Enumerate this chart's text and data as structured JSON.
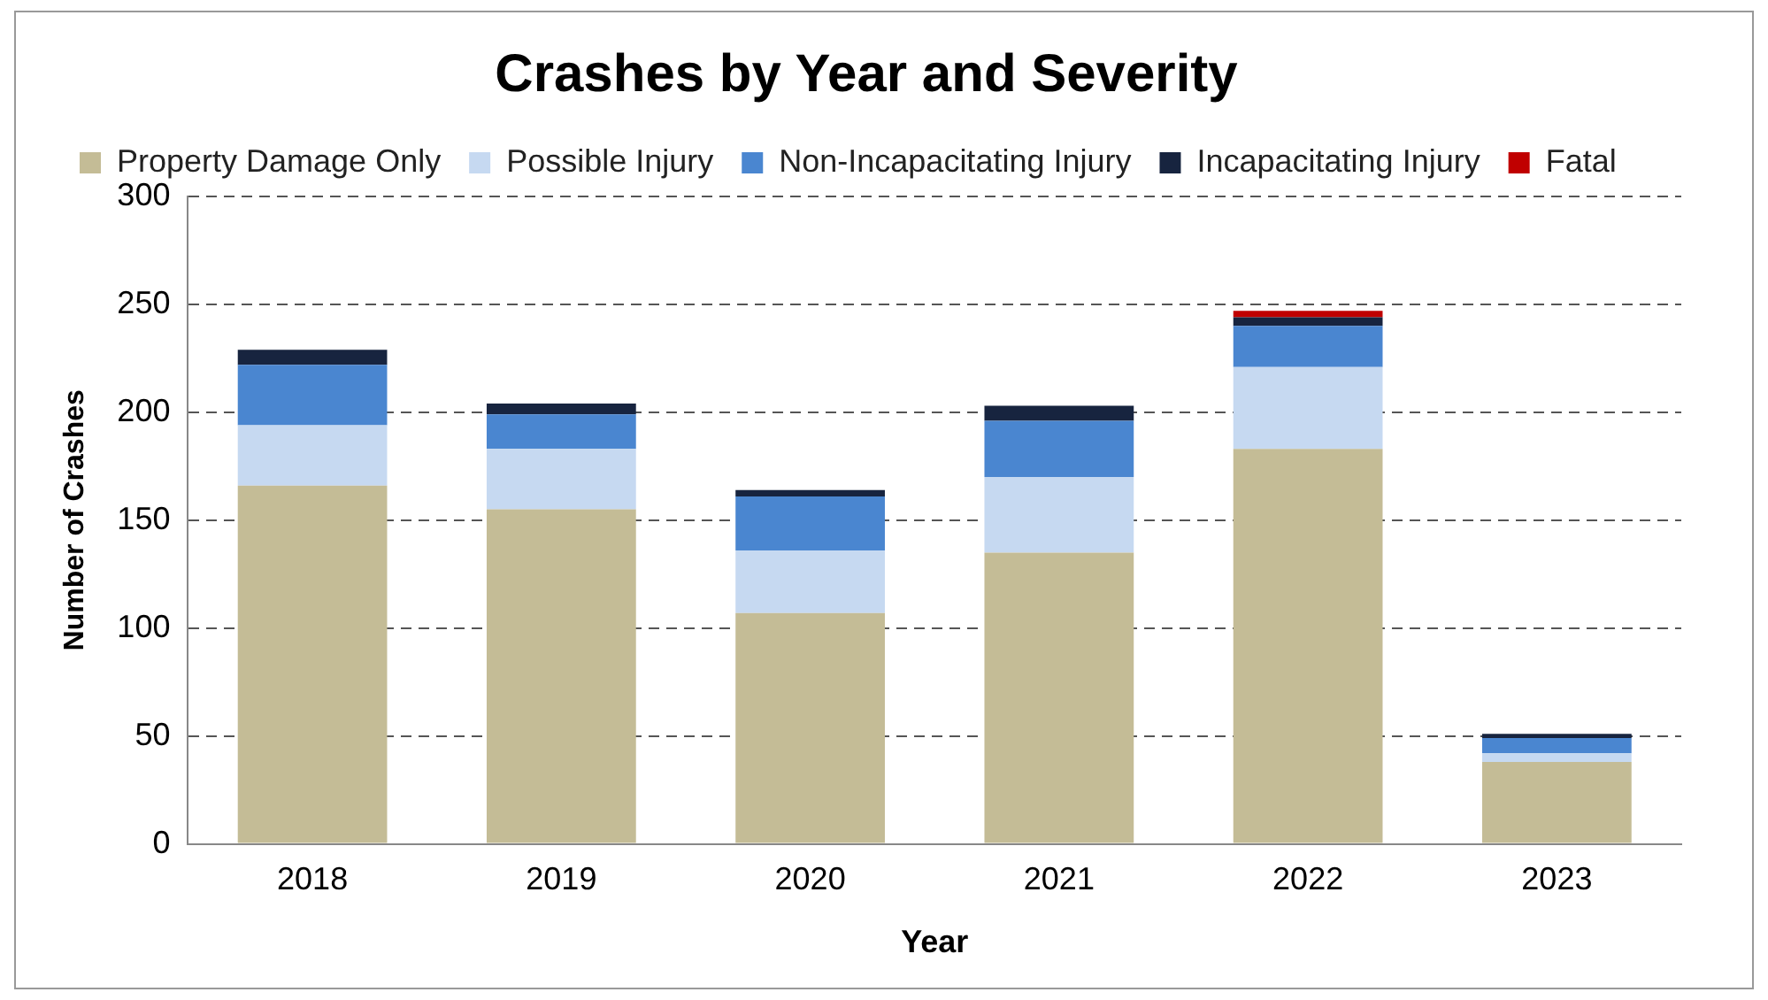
{
  "chart_data": {
    "type": "bar",
    "title": "Crashes by Year and Severity",
    "xlabel": "Year",
    "ylabel": "Number of Crashes",
    "stacked": true,
    "categories": [
      "2018",
      "2019",
      "2020",
      "2021",
      "2022",
      "2023"
    ],
    "series": [
      {
        "name": "Property Damage Only",
        "color": "#c4bc96",
        "values": [
          166,
          155,
          107,
          135,
          183,
          38
        ]
      },
      {
        "name": "Possible Injury",
        "color": "#c6d9f1",
        "values": [
          28,
          28,
          29,
          35,
          38,
          4
        ]
      },
      {
        "name": "Non-Incapacitating Injury",
        "color": "#4a86d0",
        "values": [
          28,
          16,
          25,
          26,
          19,
          7
        ]
      },
      {
        "name": "Incapacitating Injury",
        "color": "#17243f",
        "values": [
          7,
          5,
          3,
          7,
          4,
          2
        ]
      },
      {
        "name": "Fatal",
        "color": "#c00000",
        "values": [
          0,
          0,
          0,
          0,
          3,
          0
        ]
      }
    ],
    "ylim": [
      0,
      300
    ],
    "yticks": [
      0,
      50,
      100,
      150,
      200,
      250,
      300
    ],
    "grid": "y",
    "legend": "top"
  }
}
